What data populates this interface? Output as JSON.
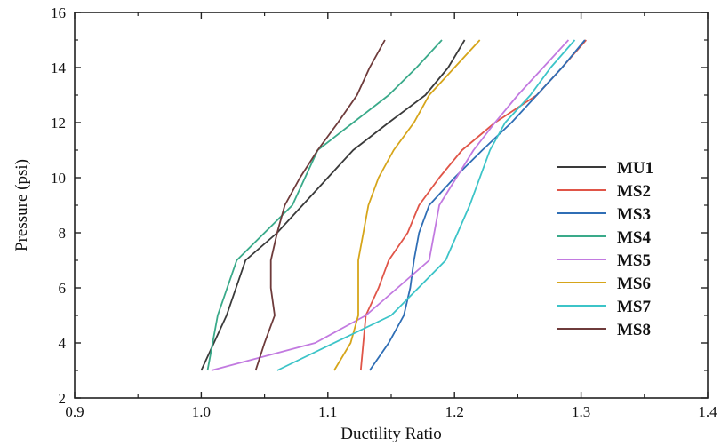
{
  "chart_data": {
    "type": "line",
    "title": "",
    "xlabel": "Ductility Ratio",
    "ylabel": "Pressure (psi)",
    "xlim": [
      0.9,
      1.4
    ],
    "ylim": [
      2,
      16
    ],
    "xticks": [
      0.9,
      1.0,
      1.1,
      1.2,
      1.3,
      1.4
    ],
    "yticks": [
      2,
      4,
      6,
      8,
      10,
      12,
      14,
      16
    ],
    "xtick_labels": [
      "0.9",
      "1.0",
      "1.1",
      "1.2",
      "1.3",
      "1.4"
    ],
    "ytick_labels": [
      "2",
      "4",
      "6",
      "8",
      "10",
      "12",
      "14",
      "16"
    ],
    "grid": false,
    "legend_position": "right",
    "series": [
      {
        "name": "MU1",
        "color": "#3a3a3a",
        "points": [
          [
            1.0,
            3
          ],
          [
            1.02,
            5
          ],
          [
            1.035,
            7
          ],
          [
            1.06,
            8
          ],
          [
            1.08,
            9
          ],
          [
            1.1,
            10
          ],
          [
            1.12,
            11
          ],
          [
            1.148,
            12
          ],
          [
            1.177,
            13
          ],
          [
            1.195,
            14
          ],
          [
            1.208,
            15
          ]
        ]
      },
      {
        "name": "MS2",
        "color": "#e05548",
        "points": [
          [
            1.126,
            3
          ],
          [
            1.13,
            5
          ],
          [
            1.14,
            6
          ],
          [
            1.148,
            7
          ],
          [
            1.163,
            8
          ],
          [
            1.172,
            9
          ],
          [
            1.188,
            10
          ],
          [
            1.206,
            11
          ],
          [
            1.232,
            12
          ],
          [
            1.265,
            13
          ],
          [
            1.285,
            14
          ],
          [
            1.304,
            15
          ]
        ]
      },
      {
        "name": "MS3",
        "color": "#2f6eb5",
        "points": [
          [
            1.133,
            3
          ],
          [
            1.148,
            4
          ],
          [
            1.16,
            5
          ],
          [
            1.165,
            6
          ],
          [
            1.168,
            7
          ],
          [
            1.172,
            8
          ],
          [
            1.18,
            9
          ],
          [
            1.2,
            10
          ],
          [
            1.222,
            11
          ],
          [
            1.245,
            12
          ],
          [
            1.265,
            13
          ],
          [
            1.285,
            14
          ],
          [
            1.303,
            15
          ]
        ]
      },
      {
        "name": "MS4",
        "color": "#3aaa8a",
        "points": [
          [
            1.005,
            3
          ],
          [
            1.013,
            5
          ],
          [
            1.028,
            7
          ],
          [
            1.072,
            9
          ],
          [
            1.092,
            11
          ],
          [
            1.12,
            12
          ],
          [
            1.148,
            13
          ],
          [
            1.17,
            14
          ],
          [
            1.19,
            15
          ]
        ]
      },
      {
        "name": "MS5",
        "color": "#c27ae0",
        "points": [
          [
            1.008,
            3
          ],
          [
            1.09,
            4
          ],
          [
            1.13,
            5
          ],
          [
            1.155,
            6
          ],
          [
            1.18,
            7
          ],
          [
            1.188,
            9
          ],
          [
            1.215,
            11
          ],
          [
            1.232,
            12
          ],
          [
            1.25,
            13
          ],
          [
            1.27,
            14
          ],
          [
            1.29,
            15
          ]
        ]
      },
      {
        "name": "MS6",
        "color": "#d6a51a",
        "points": [
          [
            1.105,
            3
          ],
          [
            1.118,
            4
          ],
          [
            1.124,
            5
          ],
          [
            1.124,
            7
          ],
          [
            1.128,
            8
          ],
          [
            1.132,
            9
          ],
          [
            1.14,
            10
          ],
          [
            1.152,
            11
          ],
          [
            1.168,
            12
          ],
          [
            1.18,
            13
          ],
          [
            1.2,
            14
          ],
          [
            1.22,
            15
          ]
        ]
      },
      {
        "name": "MS7",
        "color": "#3cc4c8",
        "points": [
          [
            1.06,
            3
          ],
          [
            1.15,
            5
          ],
          [
            1.193,
            7
          ],
          [
            1.212,
            9
          ],
          [
            1.228,
            11
          ],
          [
            1.24,
            12
          ],
          [
            1.26,
            13
          ],
          [
            1.276,
            14
          ],
          [
            1.295,
            15
          ]
        ]
      },
      {
        "name": "MS8",
        "color": "#6e3b3b",
        "points": [
          [
            1.043,
            3
          ],
          [
            1.05,
            4
          ],
          [
            1.058,
            5
          ],
          [
            1.055,
            6
          ],
          [
            1.055,
            7
          ],
          [
            1.06,
            8
          ],
          [
            1.066,
            9
          ],
          [
            1.078,
            10
          ],
          [
            1.092,
            11
          ],
          [
            1.108,
            12
          ],
          [
            1.123,
            13
          ],
          [
            1.133,
            14
          ],
          [
            1.145,
            15
          ]
        ]
      }
    ]
  }
}
